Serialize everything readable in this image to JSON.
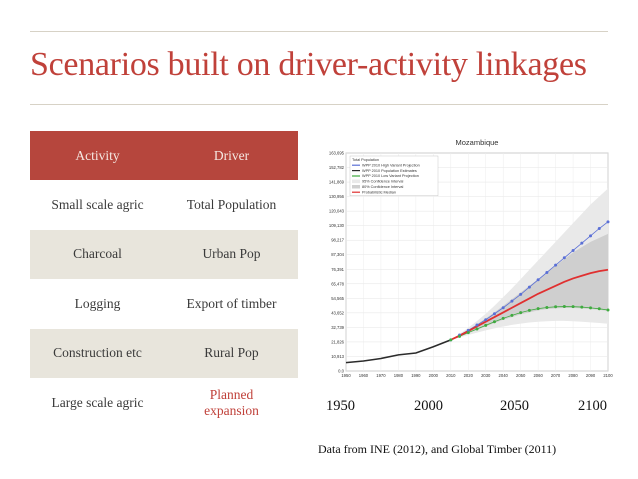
{
  "slide": {
    "title": "Scenarios built on driver-activity linkages",
    "source": "Data from INE (2012), and Global Timber (2011)"
  },
  "table": {
    "headers": [
      "Activity",
      "Driver"
    ],
    "rows": [
      {
        "activity": "Small scale agric",
        "driver": "Total Population"
      },
      {
        "activity": "Charcoal",
        "driver": "Urban Pop"
      },
      {
        "activity": "Logging",
        "driver": "Export of timber"
      },
      {
        "activity": "Construction etc",
        "driver": "Rural Pop"
      },
      {
        "activity": "Large scale agric",
        "driver": "Planned expansion"
      }
    ]
  },
  "chart_labels": {
    "x_years": [
      "1950",
      "2000",
      "2050",
      "2100"
    ]
  },
  "chart_data": {
    "type": "line",
    "title": "Mozambique",
    "yticks": [
      "0.0",
      "10,913",
      "21,826",
      "32,739",
      "43,652",
      "54,565",
      "65,478",
      "76,391",
      "87,304",
      "98,217",
      "109,130",
      "120,043",
      "130,956",
      "141,869",
      "152,782",
      "163,695"
    ],
    "xticks": [
      "1950",
      "1960",
      "1970",
      "1980",
      "1990",
      "2000",
      "2010",
      "2020",
      "2030",
      "2040",
      "2050",
      "2060",
      "2070",
      "2080",
      "2090",
      "2100"
    ],
    "ylim": [
      0,
      163695
    ],
    "xlim": [
      1950,
      2100
    ],
    "legend": [
      "Total Population",
      "WPP 2010 High Variant Projection",
      "WPP 2010 Population Estimates",
      "WPP 2010 Low Variant Projection",
      "95% Confidence Interval",
      "80% Confidence Interval",
      "Probabilistic Median"
    ],
    "x_hist": [
      1950,
      1960,
      1970,
      1980,
      1990,
      2000,
      2010
    ],
    "estimates": [
      6300,
      7500,
      9400,
      12100,
      13500,
      18200,
      23400
    ],
    "x_proj": [
      2010,
      2015,
      2020,
      2025,
      2030,
      2035,
      2040,
      2045,
      2050,
      2055,
      2060,
      2065,
      2070,
      2075,
      2080,
      2085,
      2090,
      2095,
      2100
    ],
    "high": [
      23400,
      27000,
      30500,
      34500,
      38500,
      43000,
      47500,
      52500,
      57500,
      63000,
      68500,
      74000,
      79500,
      85000,
      90500,
      96000,
      101500,
      107000,
      112000
    ],
    "median": [
      23400,
      26500,
      30000,
      33500,
      37000,
      40500,
      44000,
      47500,
      51000,
      54500,
      58000,
      61000,
      64000,
      67000,
      69500,
      71500,
      73500,
      75000,
      76000
    ],
    "low": [
      23400,
      26000,
      28800,
      31500,
      34300,
      37000,
      39500,
      41800,
      43800,
      45500,
      46800,
      47700,
      48200,
      48400,
      48300,
      48000,
      47400,
      46700,
      45800
    ],
    "ci80_upper": [
      23400,
      27200,
      31000,
      35000,
      39500,
      44000,
      49000,
      54000,
      59000,
      64000,
      69000,
      74000,
      79000,
      84000,
      89000,
      93000,
      97000,
      100000,
      103000
    ],
    "ci80_lower": [
      23400,
      25800,
      28500,
      31000,
      33500,
      36000,
      38500,
      40500,
      42500,
      44000,
      45500,
      46500,
      47000,
      47300,
      47300,
      47000,
      46500,
      46000,
      45000
    ],
    "ci95_upper": [
      23400,
      27800,
      32500,
      37500,
      43000,
      49000,
      55500,
      62000,
      69000,
      76000,
      83000,
      90000,
      97000,
      104000,
      111000,
      118000,
      125000,
      131000,
      137000
    ],
    "ci95_lower": [
      23400,
      25200,
      27000,
      28800,
      30500,
      32000,
      33400,
      34600,
      35600,
      36400,
      37000,
      37400,
      37600,
      37600,
      37400,
      37000,
      36500,
      36000,
      35500
    ],
    "colors": {
      "estimates": "#2b2b2b",
      "high": "#5a6fd6",
      "median": "#e03030",
      "low": "#3faa3f",
      "ci95": "#e9e9e9",
      "ci80": "#cfcfcf"
    }
  }
}
